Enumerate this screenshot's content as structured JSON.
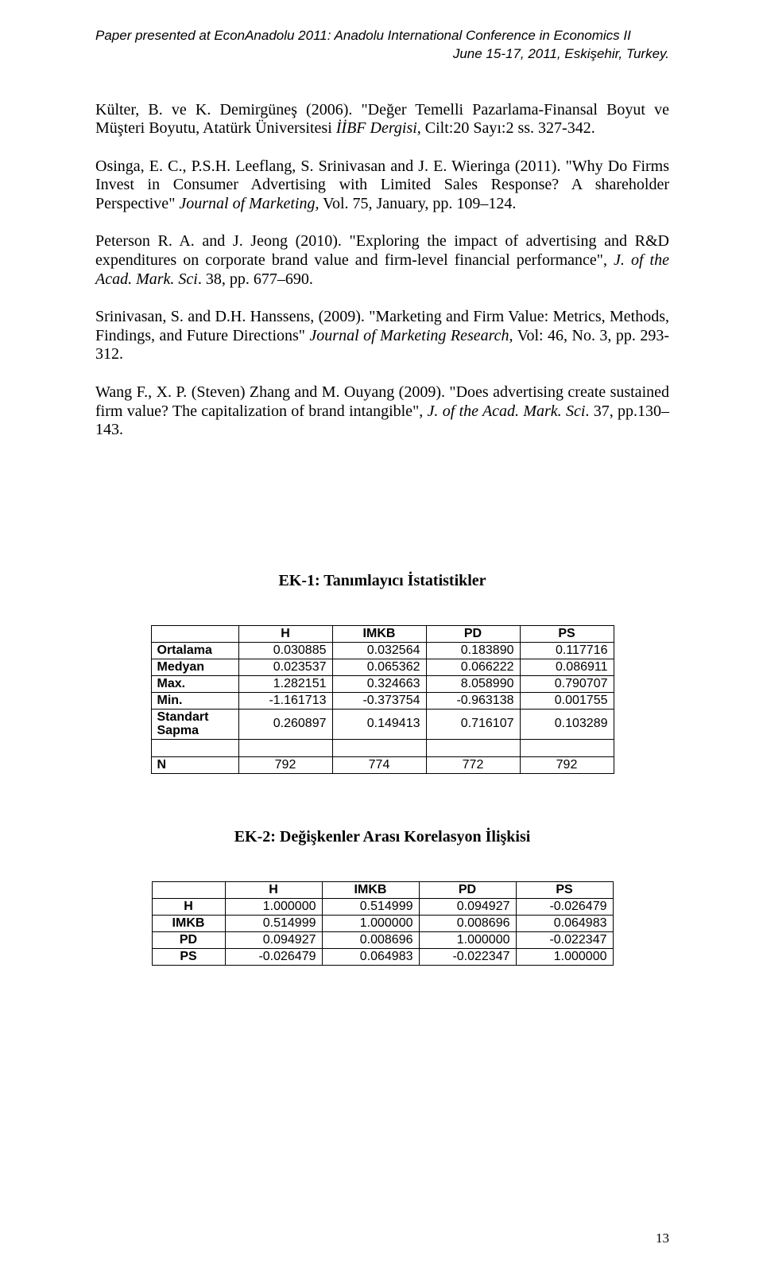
{
  "header": {
    "line1": "Paper presented at EconAnadolu 2011: Anadolu International Conference in Economics II",
    "line2": "June 15-17, 2011, Eskişehir, Turkey."
  },
  "references": {
    "r1a": "Külter, B. ve K. Demirgüneş (2006). \"Değer Temelli Pazarlama-Finansal Boyut ve Müşteri Boyutu, Atatürk Üniversitesi ",
    "r1b": "İİBF Dergisi",
    "r1c": ", Cilt:20 Sayı:2 ss. 327-342.",
    "r2a": "Osinga, E. C., P.S.H. Leeflang, S. Srinivasan and J. E. Wieringa (2011). \"Why Do Firms Invest in Consumer Advertising with Limited Sales Response? A shareholder Perspective\" ",
    "r2b": "Journal of Marketing,",
    "r2c": " Vol. 75, January, pp. 109–124.",
    "r3a": "Peterson R. A. and J. Jeong (2010). \"Exploring the impact of advertising and R&D expenditures on corporate brand value and firm-level financial performance\", ",
    "r3b": "J. of the Acad. Mark. Sci",
    "r3c": ". 38, pp. 677–690.",
    "r4a": "Srinivasan, S. and D.H. Hanssens, (2009). \"Marketing and Firm Value: Metrics, Methods, Findings, and Future Directions\" ",
    "r4b": "Journal of Marketing Research",
    "r4c": ", Vol: 46, No. 3,  pp. 293-312.",
    "r5a": "Wang F., X. P. (Steven) Zhang and M. Ouyang (2009). \"Does advertising create sustained firm value? The capitalization of brand intangible\", ",
    "r5b": "J. of the Acad. Mark. Sci",
    "r5c": ". 37, pp.130–143."
  },
  "appendix1": {
    "title": "EK-1: Tanımlayıcı İstatistikler",
    "columns": [
      "",
      "H",
      "IMKB",
      "PD",
      "PS"
    ],
    "rows": [
      {
        "label": "Ortalama",
        "vals": [
          "0.030885",
          "0.032564",
          "0.183890",
          "0.117716"
        ]
      },
      {
        "label": "Medyan",
        "vals": [
          "0.023537",
          "0.065362",
          "0.066222",
          "0.086911"
        ]
      },
      {
        "label": "Max.",
        "vals": [
          "1.282151",
          "0.324663",
          "8.058990",
          "0.790707"
        ]
      },
      {
        "label": "Min.",
        "vals": [
          "-1.161713",
          "-0.373754",
          "-0.963138",
          "0.001755"
        ]
      },
      {
        "label": "Standart Sapma",
        "vals": [
          "0.260897",
          "0.149413",
          "0.716107",
          "0.103289"
        ]
      }
    ],
    "nrow": {
      "label": "N",
      "vals": [
        "792",
        "774",
        "772",
        "792"
      ]
    }
  },
  "appendix2": {
    "title": "EK-2: Değişkenler Arası Korelasyon İlişkisi",
    "columns": [
      "",
      "H",
      "IMKB",
      "PD",
      "PS"
    ],
    "rows": [
      {
        "label": "H",
        "vals": [
          "1.000000",
          "0.514999",
          "0.094927",
          "-0.026479"
        ]
      },
      {
        "label": "IMKB",
        "vals": [
          "0.514999",
          "1.000000",
          "0.008696",
          "0.064983"
        ]
      },
      {
        "label": "PD",
        "vals": [
          "0.094927",
          "0.008696",
          "1.000000",
          "-0.022347"
        ]
      },
      {
        "label": "PS",
        "vals": [
          "-0.026479",
          "0.064983",
          "-0.022347",
          "1.000000"
        ]
      }
    ]
  },
  "page_number": "13"
}
